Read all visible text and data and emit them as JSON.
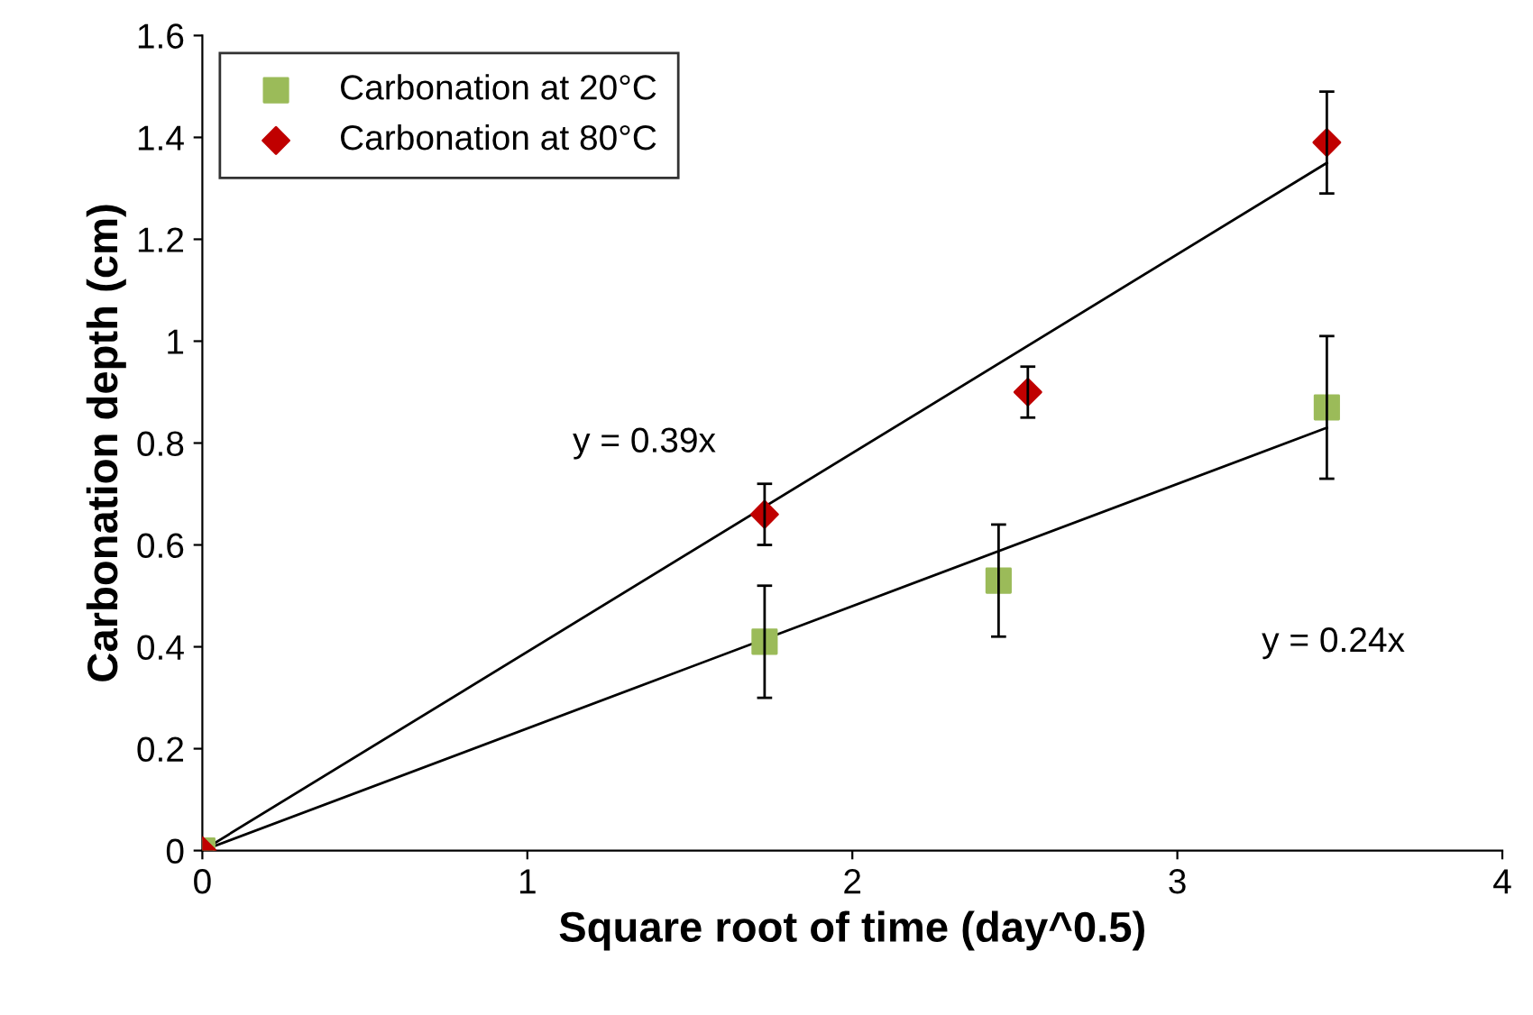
{
  "chart_data": {
    "type": "scatter",
    "xlabel": "Square root of time (day^0.5)",
    "ylabel": "Carbonation depth (cm)",
    "series": [
      {
        "name": "Carbonation at 20°C",
        "color": "#9bbb59",
        "marker": "square",
        "x": [
          0,
          1.73,
          2.45,
          3.46
        ],
        "values": [
          0,
          0.41,
          0.53,
          0.87
        ],
        "errors": [
          null,
          0.11,
          0.11,
          0.14
        ]
      },
      {
        "name": "Carbonation at 80°C",
        "color": "#c00000",
        "marker": "diamond",
        "x": [
          0,
          1.73,
          2.54,
          3.46
        ],
        "values": [
          0,
          0.66,
          0.9,
          1.39
        ],
        "errors": [
          null,
          0.06,
          0.05,
          0.1
        ]
      },
      {
        "type": "line",
        "color": "#000000",
        "marker": "none",
        "x": [
          0,
          3.46
        ],
        "values": [
          0,
          1.35
        ]
      },
      {
        "type": "line",
        "color": "#000000",
        "marker": "none",
        "x": [
          0,
          3.46
        ],
        "values": [
          0,
          0.83
        ]
      }
    ],
    "annotations": [
      "y = 0.39x",
      "y = 0.24x"
    ],
    "xlim": [
      0,
      4
    ],
    "xticks": [
      0,
      1,
      2,
      3,
      4
    ],
    "ylim": [
      0,
      1.6
    ],
    "yticks": [
      0,
      {
        "value": 0.2,
        "label": "0.2"
      },
      {
        "value": 0.4,
        "label": "0.4"
      },
      {
        "value": 0.6,
        "label": "0.6"
      },
      {
        "value": 0.8,
        "label": "0.8"
      },
      1,
      {
        "value": 1.2,
        "label": "1.2"
      },
      {
        "value": 1.4,
        "label": "1.4"
      },
      {
        "value": 1.6,
        "label": "1.6"
      }
    ],
    "grid": false,
    "legend": "top left"
  }
}
